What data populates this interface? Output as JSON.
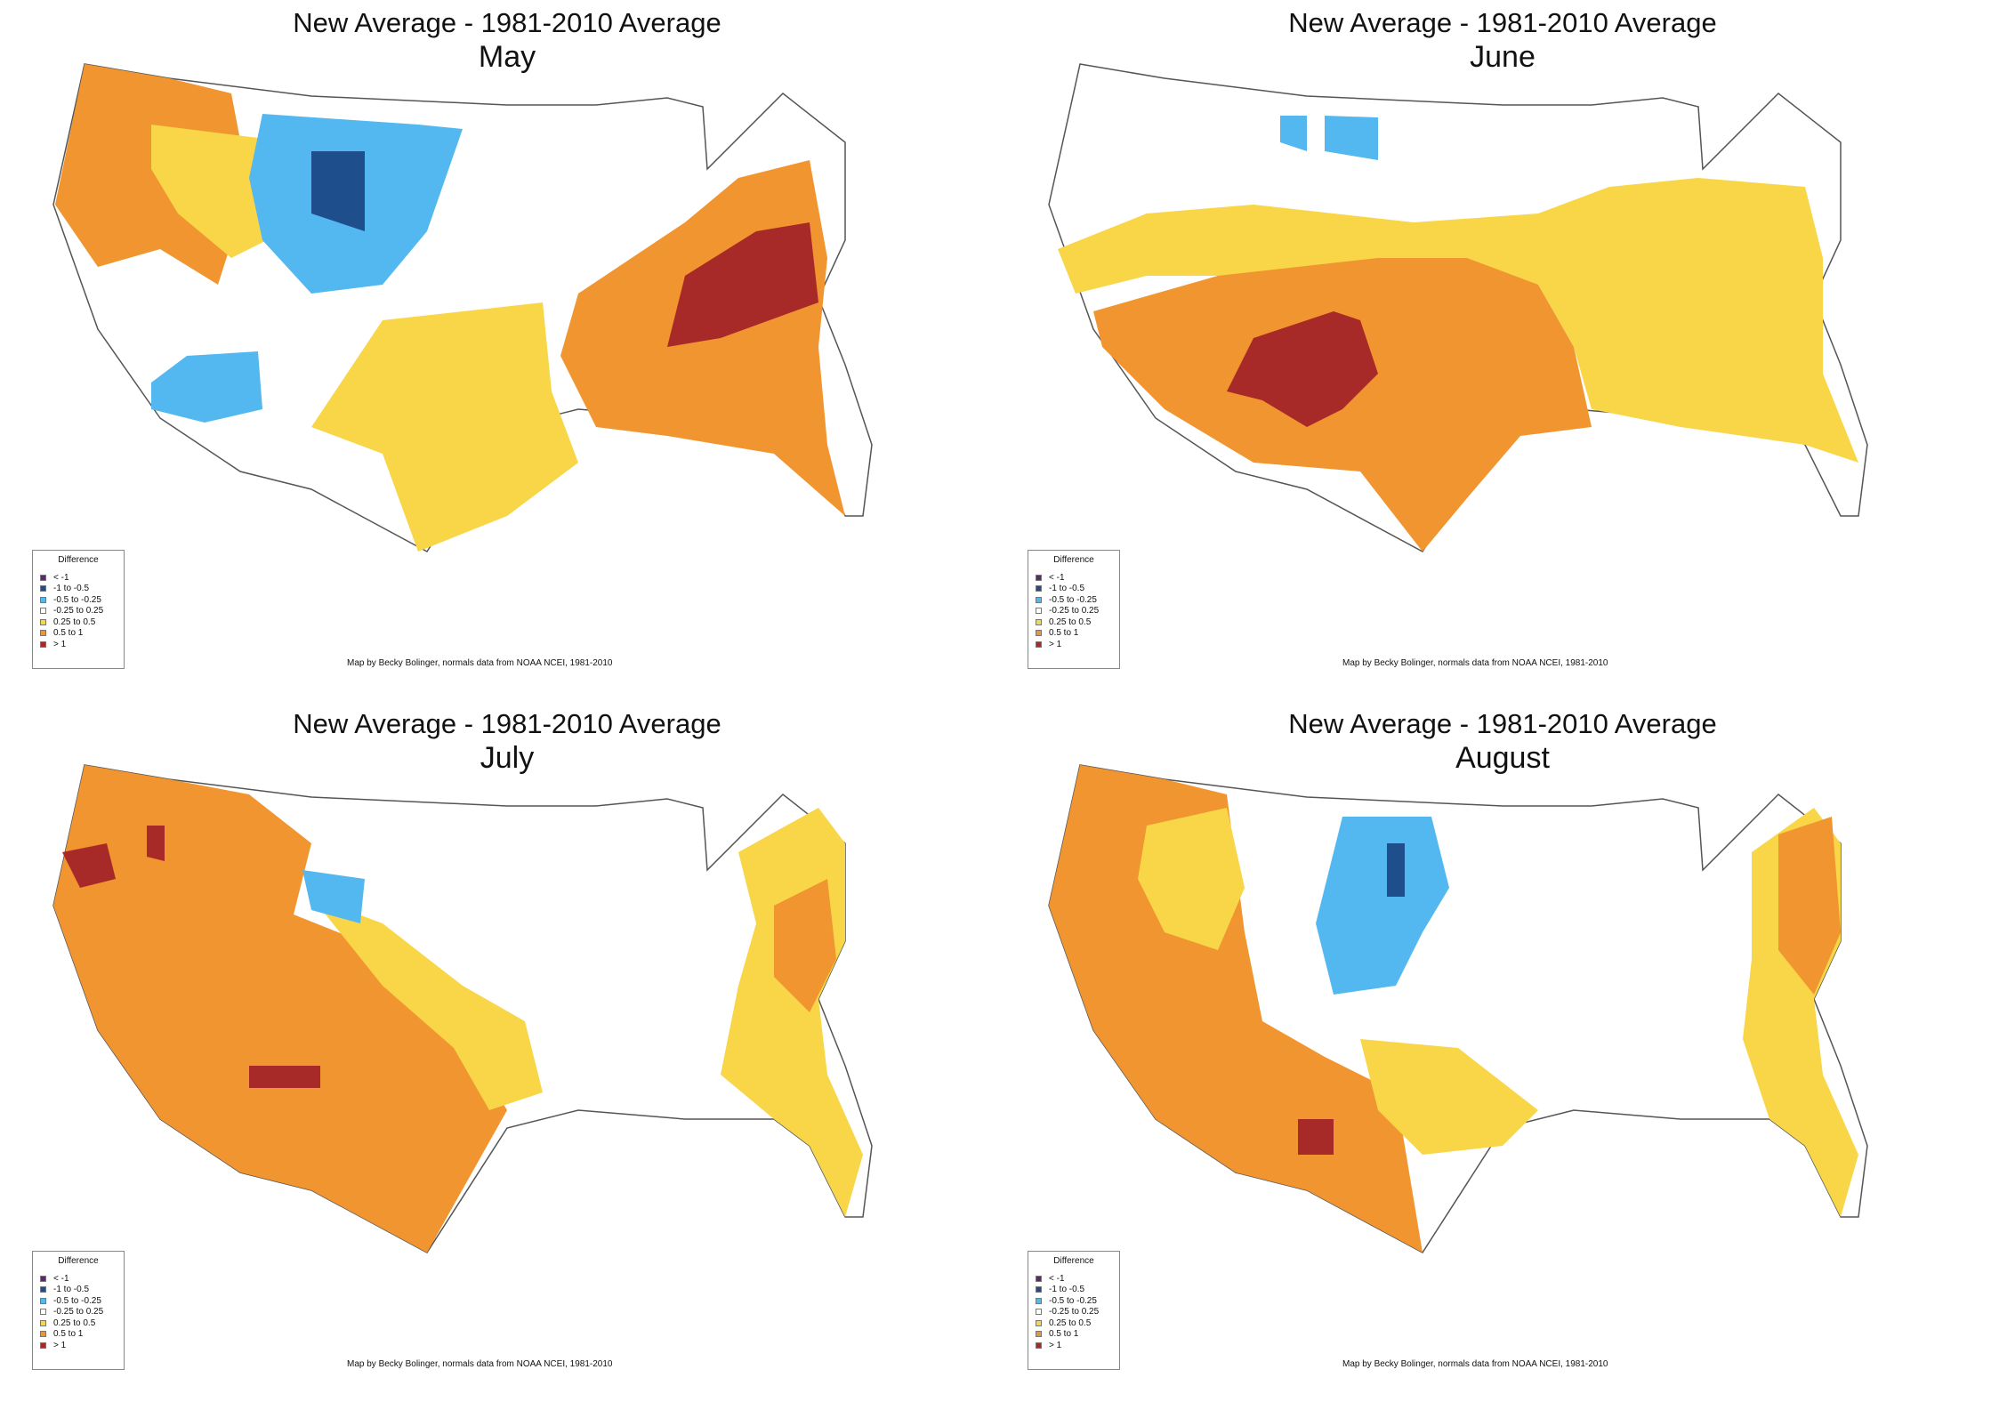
{
  "panels": [
    {
      "title": "New Average - 1981-2010 Average",
      "month": "May"
    },
    {
      "title": "New Average - 1981-2010 Average",
      "month": "June"
    },
    {
      "title": "New Average - 1981-2010 Average",
      "month": "July"
    },
    {
      "title": "New Average - 1981-2010 Average",
      "month": "August"
    }
  ],
  "legend": {
    "title": "Difference",
    "items": [
      {
        "label": "< -1",
        "color": "#5b2a6e"
      },
      {
        "label": "-1 to -0.5",
        "color": "#1f4e8c"
      },
      {
        "label": "-0.5 to -0.25",
        "color": "#54b8f0"
      },
      {
        "label": "-0.25 to 0.25",
        "color": "#ffffff"
      },
      {
        "label": "0.25 to 0.5",
        "color": "#f8d648"
      },
      {
        "label": "0.5 to 1",
        "color": "#f0952f"
      },
      {
        "label": "> 1",
        "color": "#a82a28"
      }
    ]
  },
  "credit": "Map by Becky Bolinger, normals data from NOAA NCEI, 1981-2010"
}
